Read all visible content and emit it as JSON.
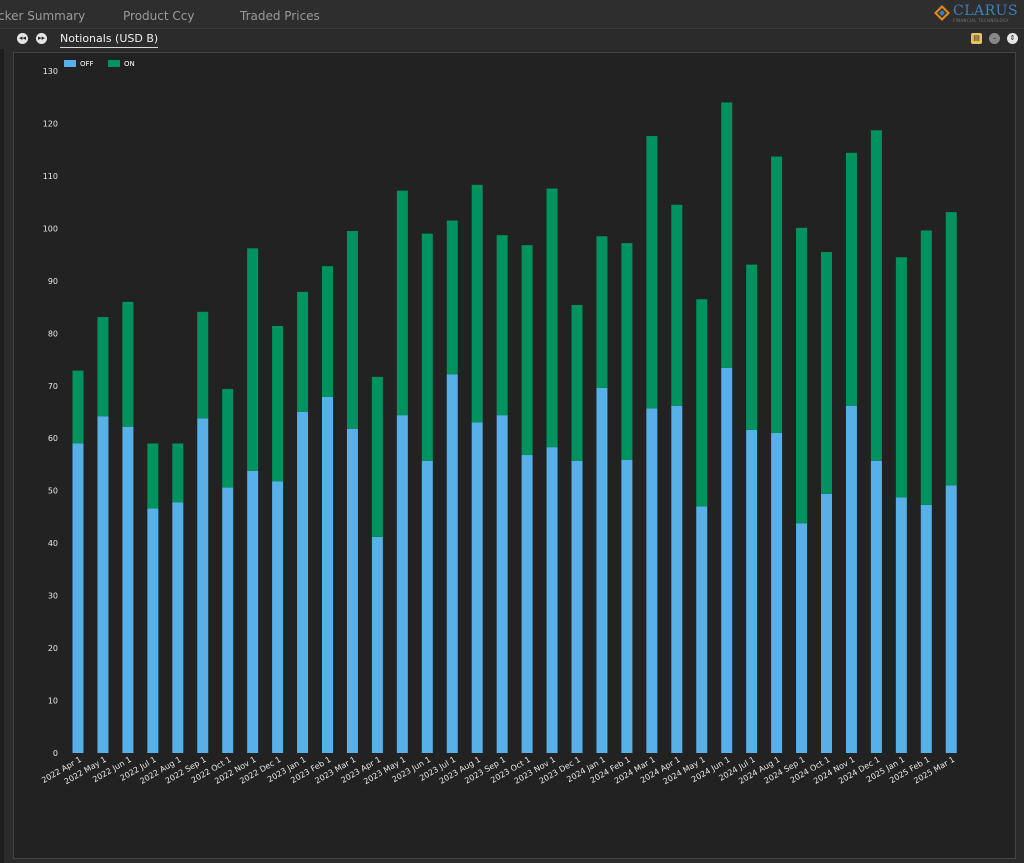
{
  "tabs": [
    {
      "label": "cker Summary"
    },
    {
      "label": "Product Ccy"
    },
    {
      "label": "Traded Prices"
    }
  ],
  "logo": {
    "text": "CLARUS",
    "sub": "FINANCIAL TECHNOLOGY"
  },
  "panel": {
    "tab_label": "Notionals (USD B)"
  },
  "colors": {
    "off": "#57b0e8",
    "on": "#00935f",
    "background": "#222222"
  },
  "chart_data": {
    "type": "bar",
    "stacked": true,
    "title": "Notionals (USD B)",
    "xlabel": "",
    "ylabel": "",
    "ylim": [
      0,
      130
    ],
    "yticks": [
      0,
      10,
      20,
      30,
      40,
      50,
      60,
      70,
      80,
      90,
      100,
      110,
      120,
      130
    ],
    "legend_position": "top-left",
    "grid": false,
    "categories": [
      "2022 Apr 1",
      "2022 May 1",
      "2022 Jun 1",
      "2022 Jul 1",
      "2022 Aug 1",
      "2022 Sep 1",
      "2022 Oct 1",
      "2022 Nov 1",
      "2022 Dec 1",
      "2023 Jan 1",
      "2023 Feb 1",
      "2023 Mar 1",
      "2023 Apr 1",
      "2023 May 1",
      "2023 Jun 1",
      "2023 Jul 1",
      "2023 Aug 1",
      "2023 Sep 1",
      "2023 Oct 1",
      "2023 Nov 1",
      "2023 Dec 1",
      "2024 Jan 1",
      "2024 Feb 1",
      "2024 Mar 1",
      "2024 Apr 1",
      "2024 May 1",
      "2024 Jun 1",
      "2024 Jul 1",
      "2024 Aug 1",
      "2024 Sep 1",
      "2024 Oct 1",
      "2024 Nov 1",
      "2024 Dec 1",
      "2025 Jan 1",
      "2025 Feb 1",
      "2025 Mar 1"
    ],
    "series": [
      {
        "name": "OFF",
        "values": [
          59,
          64.2,
          62.2,
          46.6,
          47.8,
          63.8,
          50.6,
          53.8,
          51.8,
          65,
          67.9,
          61.8,
          41.2,
          64.4,
          55.7,
          72.2,
          63,
          64.4,
          56.8,
          58.3,
          55.7,
          69.6,
          55.9,
          65.7,
          66.2,
          47,
          73.4,
          61.6,
          61,
          43.8,
          49.4,
          66.2,
          55.7,
          48.7,
          47.3,
          51
        ]
      },
      {
        "name": "ON",
        "values": [
          13.9,
          18.9,
          23.8,
          12.4,
          11.2,
          20.3,
          18.8,
          42.4,
          29.6,
          22.9,
          24.9,
          37.7,
          30.5,
          42.8,
          43.3,
          29.3,
          45.3,
          34.3,
          40,
          49.3,
          29.7,
          28.9,
          41.3,
          51.9,
          38.3,
          39.5,
          50.6,
          31.5,
          52.7,
          56.3,
          46.1,
          48.2,
          63,
          45.8,
          52.3,
          52.1
        ]
      }
    ]
  }
}
